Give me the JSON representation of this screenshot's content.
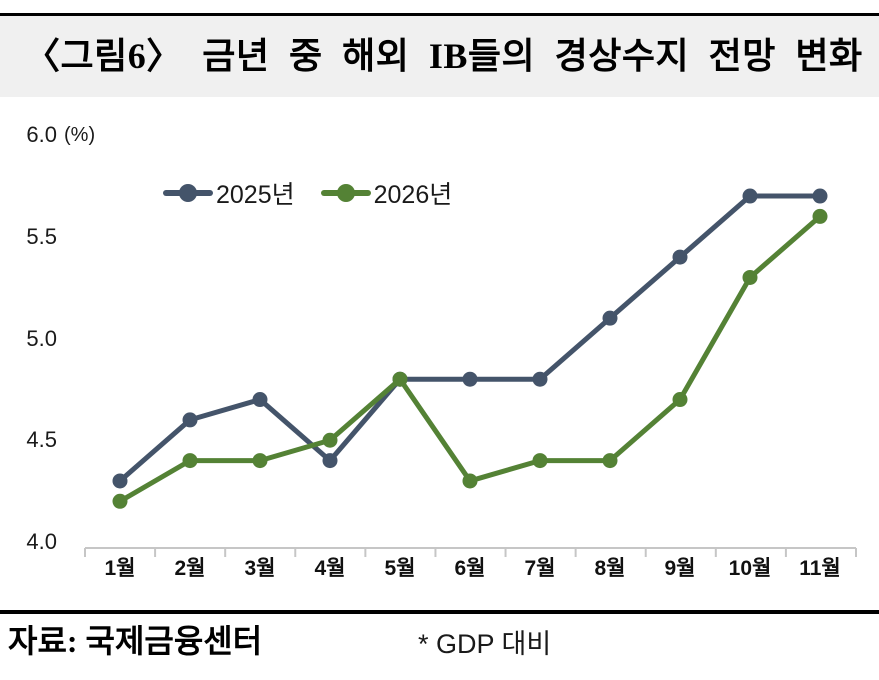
{
  "header": {
    "title": "〈그림6〉 금년 중 해외 IB들의 경상수지 전망 변화"
  },
  "chart_data": {
    "type": "line",
    "title": "〈그림6〉 금년 중 해외 IB들의 경상수지 전망 변화",
    "unit_label": "(%)",
    "categories": [
      "1월",
      "2월",
      "3월",
      "4월",
      "5월",
      "6월",
      "7월",
      "8월",
      "9월",
      "10월",
      "11월"
    ],
    "series": [
      {
        "name": "2025년",
        "color": "#44546A",
        "values": [
          4.3,
          4.6,
          4.7,
          4.4,
          4.8,
          4.8,
          4.8,
          5.1,
          5.4,
          5.7,
          5.7
        ]
      },
      {
        "name": "2026년",
        "color": "#548235",
        "values": [
          4.2,
          4.4,
          4.4,
          4.5,
          4.8,
          4.3,
          4.4,
          4.4,
          4.7,
          5.3,
          5.6
        ]
      }
    ],
    "xlabel": "",
    "ylabel": "(%)",
    "ylim": [
      4.0,
      6.0
    ],
    "yticks": [
      4.0,
      4.5,
      5.0,
      5.5,
      6.0
    ],
    "ytick_labels": [
      "4.0",
      "4.5",
      "5.0",
      "5.5",
      "6.0"
    ],
    "grid": false,
    "legend_position": "inside-top-left",
    "axis_color": "#c6c6c6"
  },
  "footer": {
    "source": "자료: 국제금융센터",
    "note": "* GDP 대비"
  }
}
